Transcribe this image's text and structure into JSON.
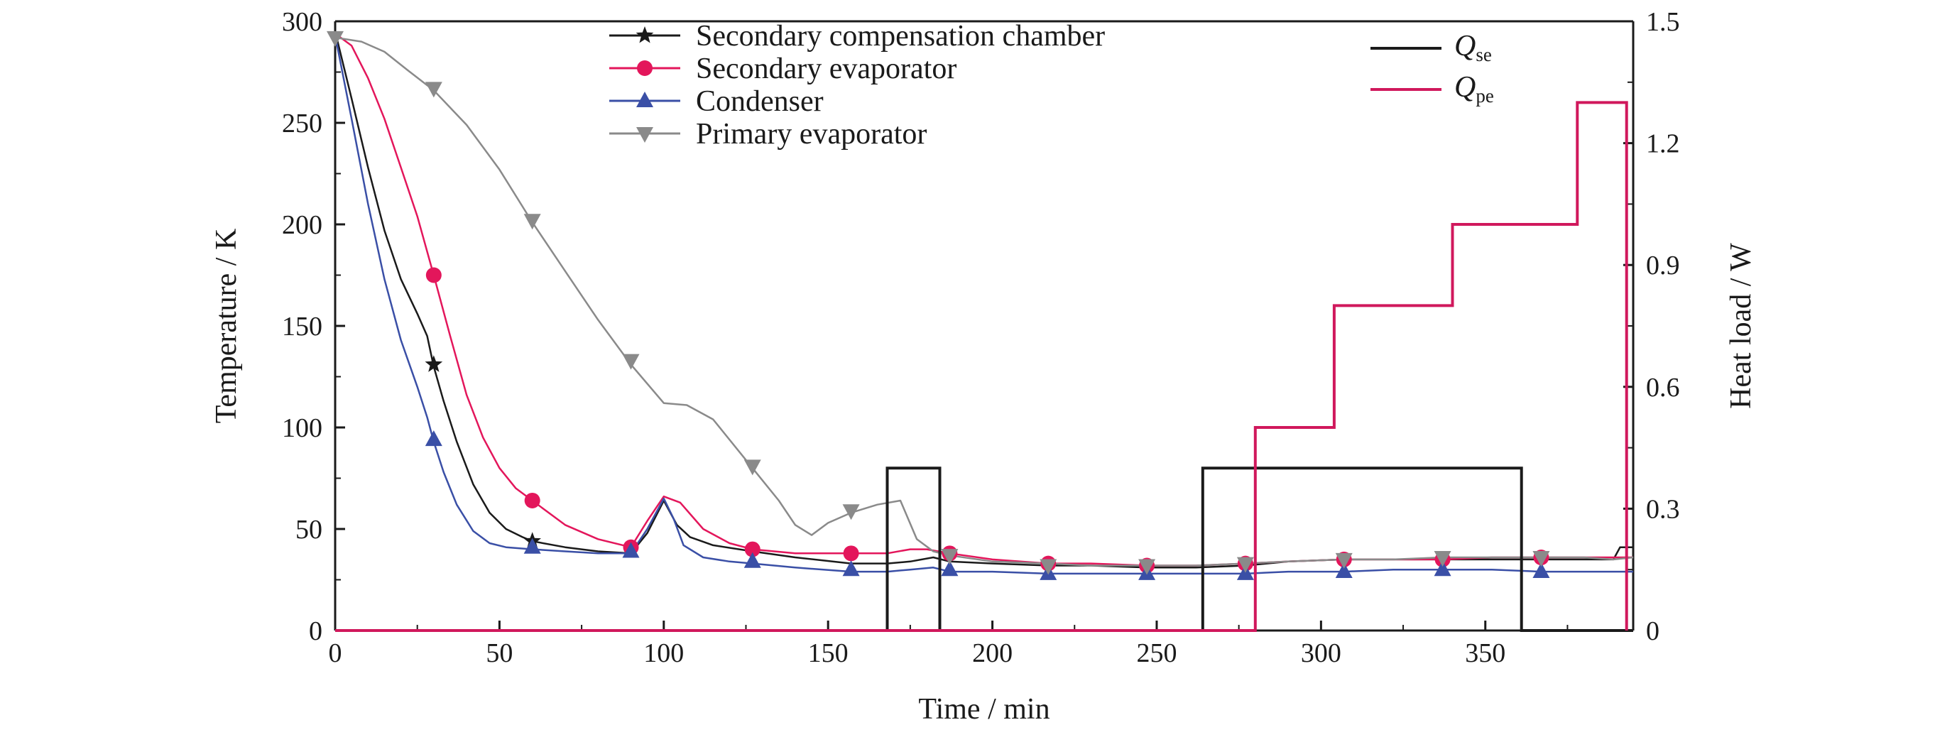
{
  "chart_data": {
    "type": "line",
    "title": "",
    "xlabel": "Time / min",
    "ylabel": "Temperature / K",
    "y2label": "Heat load / W",
    "xlim": [
      0,
      395
    ],
    "ylim": [
      0,
      300
    ],
    "y2lim": [
      0,
      1.5
    ],
    "xticks": [
      "0",
      "50",
      "100",
      "150",
      "200",
      "250",
      "300",
      "350"
    ],
    "yticks": [
      "0",
      "50",
      "100",
      "150",
      "200",
      "250",
      "300"
    ],
    "y2ticks": [
      "0",
      "0.3",
      "0.6",
      "0.9",
      "1.2",
      "1.5"
    ],
    "grid": false,
    "legend_position": "top-center",
    "series": [
      {
        "name": "Secondary compensation chamber",
        "axis": "left",
        "color": "#1a1a1a",
        "marker": "star",
        "points": [
          [
            0,
            295
          ],
          [
            5,
            262
          ],
          [
            10,
            228
          ],
          [
            15,
            197
          ],
          [
            20,
            173
          ],
          [
            25,
            156
          ],
          [
            28,
            145
          ],
          [
            30,
            130
          ],
          [
            33,
            113
          ],
          [
            37,
            93
          ],
          [
            42,
            72
          ],
          [
            47,
            58
          ],
          [
            52,
            50
          ],
          [
            57,
            46
          ],
          [
            60,
            44
          ],
          [
            70,
            41
          ],
          [
            80,
            39
          ],
          [
            90,
            38
          ],
          [
            95,
            48
          ],
          [
            100,
            64
          ],
          [
            104,
            52
          ],
          [
            108,
            46
          ],
          [
            115,
            42
          ],
          [
            127,
            39
          ],
          [
            140,
            36
          ],
          [
            157,
            33
          ],
          [
            168,
            33
          ],
          [
            175,
            34
          ],
          [
            182,
            36
          ],
          [
            187,
            34
          ],
          [
            200,
            33
          ],
          [
            217,
            32
          ],
          [
            230,
            32
          ],
          [
            247,
            31
          ],
          [
            262,
            31
          ],
          [
            277,
            32
          ],
          [
            290,
            34
          ],
          [
            307,
            35
          ],
          [
            322,
            35
          ],
          [
            337,
            35
          ],
          [
            352,
            35
          ],
          [
            367,
            35
          ],
          [
            380,
            35
          ],
          [
            389,
            35
          ],
          [
            391,
            41
          ],
          [
            395,
            41
          ]
        ],
        "markers": [
          [
            30,
            131
          ],
          [
            60,
            44
          ]
        ]
      },
      {
        "name": "Secondary evaporator",
        "axis": "left",
        "color": "#e3165b",
        "marker": "circle",
        "points": [
          [
            0,
            294
          ],
          [
            5,
            288
          ],
          [
            10,
            272
          ],
          [
            15,
            252
          ],
          [
            20,
            228
          ],
          [
            25,
            204
          ],
          [
            30,
            175
          ],
          [
            35,
            145
          ],
          [
            40,
            116
          ],
          [
            45,
            95
          ],
          [
            50,
            80
          ],
          [
            55,
            70
          ],
          [
            60,
            64
          ],
          [
            70,
            52
          ],
          [
            80,
            45
          ],
          [
            90,
            41
          ],
          [
            95,
            54
          ],
          [
            100,
            66
          ],
          [
            105,
            63
          ],
          [
            112,
            50
          ],
          [
            120,
            43
          ],
          [
            127,
            40
          ],
          [
            140,
            38
          ],
          [
            157,
            38
          ],
          [
            168,
            38
          ],
          [
            175,
            40
          ],
          [
            180,
            40
          ],
          [
            187,
            38
          ],
          [
            200,
            35
          ],
          [
            217,
            33
          ],
          [
            230,
            33
          ],
          [
            247,
            32
          ],
          [
            262,
            32
          ],
          [
            277,
            33
          ],
          [
            290,
            34
          ],
          [
            307,
            35
          ],
          [
            322,
            35
          ],
          [
            337,
            35
          ],
          [
            352,
            36
          ],
          [
            367,
            36
          ],
          [
            380,
            36
          ],
          [
            389,
            36
          ],
          [
            395,
            36
          ]
        ],
        "markers": [
          [
            30,
            175
          ],
          [
            60,
            64
          ],
          [
            90,
            41
          ],
          [
            127,
            40
          ],
          [
            157,
            38
          ],
          [
            187,
            38
          ],
          [
            217,
            33
          ],
          [
            247,
            32
          ],
          [
            277,
            33
          ],
          [
            307,
            35
          ],
          [
            337,
            35
          ],
          [
            367,
            36
          ]
        ]
      },
      {
        "name": "Condenser",
        "axis": "left",
        "color": "#3a4fa6",
        "marker": "triangle-up",
        "points": [
          [
            0,
            293
          ],
          [
            5,
            252
          ],
          [
            10,
            210
          ],
          [
            15,
            173
          ],
          [
            20,
            143
          ],
          [
            25,
            120
          ],
          [
            28,
            105
          ],
          [
            30,
            93
          ],
          [
            33,
            78
          ],
          [
            37,
            62
          ],
          [
            42,
            49
          ],
          [
            47,
            43
          ],
          [
            52,
            41
          ],
          [
            60,
            40
          ],
          [
            70,
            39
          ],
          [
            80,
            38
          ],
          [
            90,
            38
          ],
          [
            95,
            50
          ],
          [
            100,
            65
          ],
          [
            103,
            55
          ],
          [
            106,
            42
          ],
          [
            112,
            36
          ],
          [
            120,
            34
          ],
          [
            127,
            33
          ],
          [
            140,
            31
          ],
          [
            157,
            29
          ],
          [
            168,
            29
          ],
          [
            175,
            30
          ],
          [
            182,
            31
          ],
          [
            187,
            29
          ],
          [
            200,
            29
          ],
          [
            217,
            28
          ],
          [
            230,
            28
          ],
          [
            247,
            28
          ],
          [
            262,
            28
          ],
          [
            277,
            28
          ],
          [
            290,
            29
          ],
          [
            307,
            29
          ],
          [
            322,
            30
          ],
          [
            337,
            30
          ],
          [
            352,
            30
          ],
          [
            367,
            29
          ],
          [
            380,
            29
          ],
          [
            389,
            29
          ],
          [
            395,
            29
          ]
        ],
        "markers": [
          [
            30,
            94
          ],
          [
            60,
            41
          ],
          [
            90,
            39
          ],
          [
            127,
            34
          ],
          [
            157,
            30
          ],
          [
            187,
            30
          ],
          [
            217,
            28
          ],
          [
            247,
            28
          ],
          [
            277,
            28
          ],
          [
            307,
            29
          ],
          [
            337,
            30
          ],
          [
            367,
            29
          ]
        ]
      },
      {
        "name": "Primary evaporator",
        "axis": "left",
        "color": "#8a8a8a",
        "marker": "triangle-down",
        "points": [
          [
            0,
            292
          ],
          [
            8,
            290
          ],
          [
            15,
            285
          ],
          [
            22,
            276
          ],
          [
            30,
            266
          ],
          [
            40,
            249
          ],
          [
            50,
            227
          ],
          [
            60,
            201
          ],
          [
            70,
            177
          ],
          [
            80,
            153
          ],
          [
            90,
            131
          ],
          [
            100,
            112
          ],
          [
            107,
            111
          ],
          [
            115,
            104
          ],
          [
            127,
            80
          ],
          [
            135,
            64
          ],
          [
            140,
            52
          ],
          [
            145,
            47
          ],
          [
            150,
            53
          ],
          [
            157,
            58
          ],
          [
            165,
            62
          ],
          [
            172,
            64
          ],
          [
            177,
            45
          ],
          [
            182,
            39
          ],
          [
            187,
            37
          ],
          [
            200,
            34
          ],
          [
            217,
            33
          ],
          [
            230,
            32
          ],
          [
            247,
            32
          ],
          [
            262,
            32
          ],
          [
            277,
            33
          ],
          [
            290,
            34
          ],
          [
            307,
            35
          ],
          [
            322,
            35
          ],
          [
            337,
            36
          ],
          [
            352,
            36
          ],
          [
            367,
            36
          ],
          [
            380,
            36
          ],
          [
            389,
            35
          ],
          [
            395,
            36
          ]
        ],
        "markers": [
          [
            0,
            292
          ],
          [
            30,
            267
          ],
          [
            60,
            202
          ],
          [
            90,
            133
          ],
          [
            127,
            81
          ],
          [
            157,
            59
          ],
          [
            187,
            37
          ],
          [
            217,
            32
          ],
          [
            247,
            32
          ],
          [
            277,
            33
          ],
          [
            307,
            35
          ],
          [
            337,
            36
          ],
          [
            367,
            36
          ]
        ]
      },
      {
        "name": "Qse",
        "axis": "right",
        "color": "#1a1a1a",
        "marker": "none",
        "points": [
          [
            0,
            0
          ],
          [
            168,
            0
          ],
          [
            168,
            0.4
          ],
          [
            184,
            0.4
          ],
          [
            184,
            0
          ],
          [
            264,
            0
          ],
          [
            264,
            0.4
          ],
          [
            361,
            0.4
          ],
          [
            361,
            0
          ],
          [
            395,
            0
          ]
        ]
      },
      {
        "name": "Qpe",
        "axis": "right",
        "color": "#d0185c",
        "marker": "none",
        "points": [
          [
            0,
            0
          ],
          [
            280,
            0
          ],
          [
            280,
            0.5
          ],
          [
            304,
            0.5
          ],
          [
            304,
            0.8
          ],
          [
            340,
            0.8
          ],
          [
            340,
            1.0
          ],
          [
            378,
            1.0
          ],
          [
            378,
            1.3
          ],
          [
            393,
            1.3
          ],
          [
            393,
            0
          ]
        ]
      }
    ],
    "legend_left": {
      "items": [
        {
          "label": "Secondary compensation chamber",
          "color": "#1a1a1a",
          "marker": "star"
        },
        {
          "label": "Secondary evaporator",
          "color": "#e3165b",
          "marker": "circle"
        },
        {
          "label": "Condenser",
          "color": "#3a4fa6",
          "marker": "triangle-up"
        },
        {
          "label": "Primary evaporator",
          "color": "#8a8a8a",
          "marker": "triangle-down"
        }
      ]
    },
    "legend_right": {
      "items": [
        {
          "symbol": "Q",
          "sub": "se",
          "color": "#1a1a1a"
        },
        {
          "symbol": "Q",
          "sub": "pe",
          "color": "#d0185c"
        }
      ]
    }
  }
}
